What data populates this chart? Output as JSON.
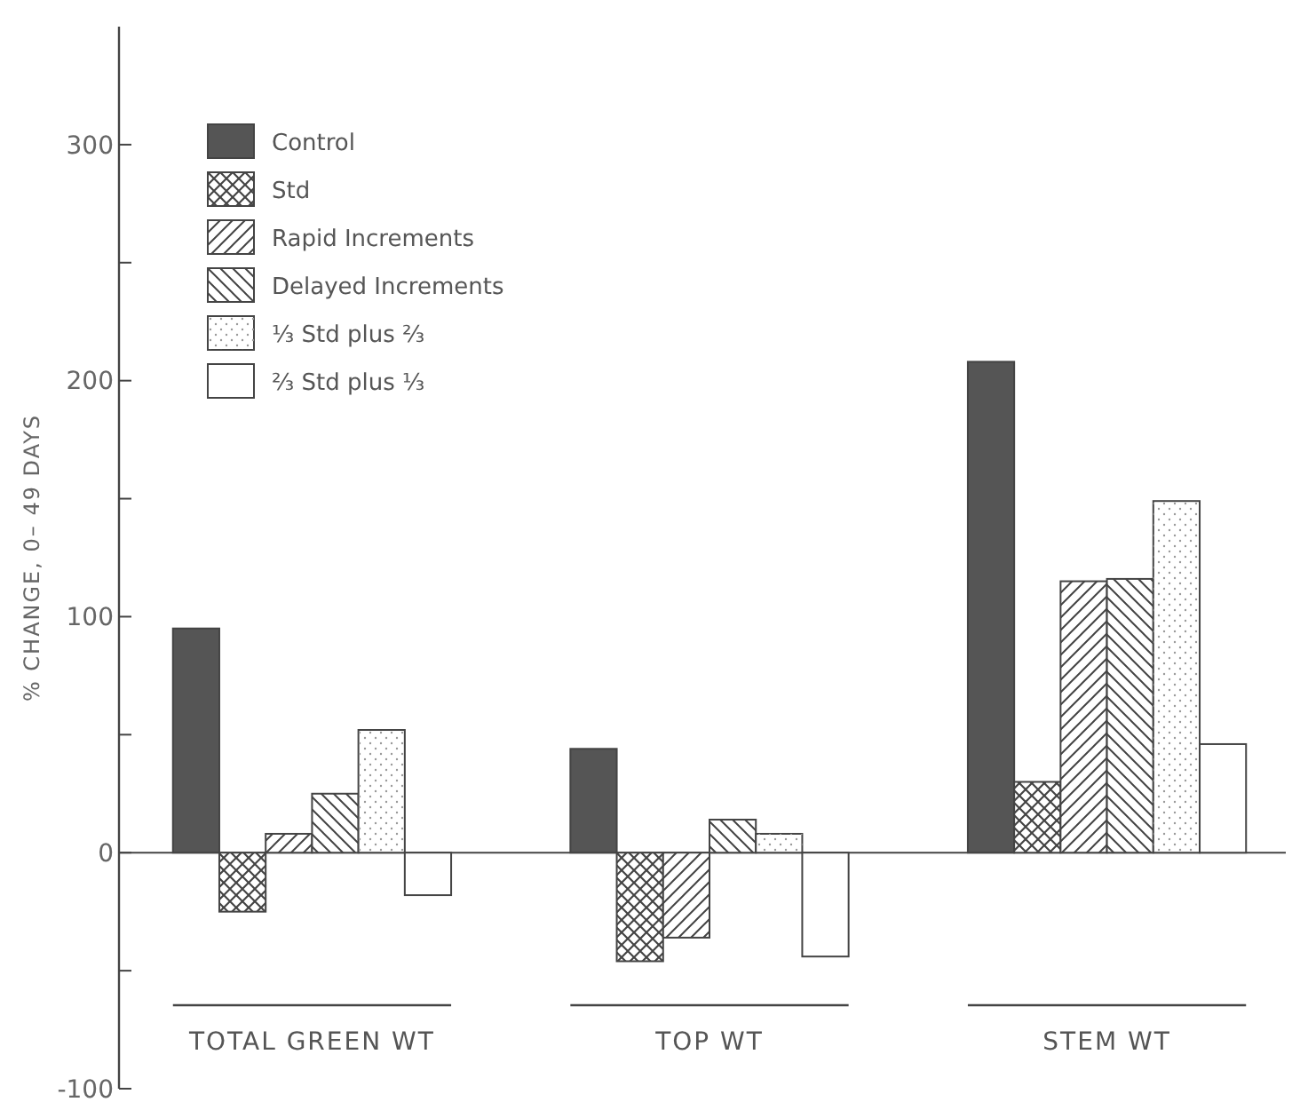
{
  "chart_data": {
    "type": "bar",
    "ylabel": "% CHANGE, 0– 49 DAYS",
    "categories": [
      "TOTAL GREEN WT",
      "TOP WT",
      "STEM WT"
    ],
    "series": [
      {
        "name": "Control",
        "color": "#555555",
        "values": [
          95,
          44,
          208
        ]
      },
      {
        "name": "Std",
        "color": "#ffffff",
        "values": [
          -25,
          -46,
          30
        ]
      },
      {
        "name": "Rapid Increments",
        "color": "#ffffff",
        "values": [
          8,
          -36,
          115
        ]
      },
      {
        "name": "Delayed Increments",
        "color": "#ffffff",
        "values": [
          25,
          14,
          116
        ]
      },
      {
        "name": "⅓ Std plus ⅔",
        "color": "#ffffff",
        "values": [
          52,
          8,
          149
        ]
      },
      {
        "name": "⅔ Std plus ⅓",
        "color": "#ffffff",
        "values": [
          -18,
          -44,
          46
        ]
      }
    ],
    "ylim": [
      -100,
      350
    ],
    "yticks": [
      -100,
      {
        "value": -50,
        "label": null
      },
      0,
      {
        "value": 50,
        "label": null
      },
      100,
      {
        "value": 150,
        "label": null
      },
      200,
      {
        "value": 250,
        "label": null
      },
      300
    ],
    "legend": "top left"
  }
}
